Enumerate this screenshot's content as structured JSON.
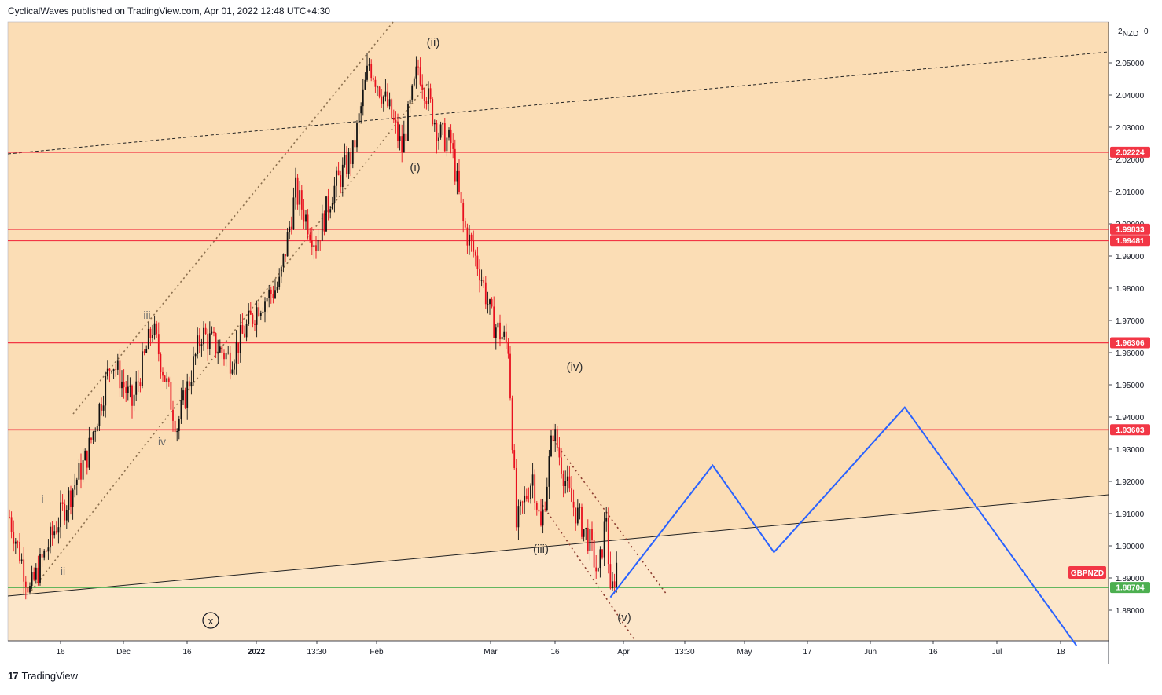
{
  "header": {
    "text": "CyclicalWaves published on TradingView.com, Apr 01, 2022 12:48 UTC+4:30"
  },
  "footer": {
    "logo_glyph": "17",
    "brand": "TradingView"
  },
  "chart_data": {
    "type": "candlestick",
    "symbol": "GBPNZD",
    "currency_label": "NZD",
    "axis_top_labels": [
      "2",
      "0"
    ],
    "ylim": [
      1.87,
      2.06
    ],
    "y_ticks": [
      "1.88000",
      "1.89000",
      "1.90000",
      "1.91000",
      "1.92000",
      "1.93000",
      "1.94000",
      "1.95000",
      "1.96000",
      "1.97000",
      "1.98000",
      "1.99000",
      "2.00000",
      "2.01000",
      "2.02000",
      "2.03000",
      "2.04000",
      "2.05000"
    ],
    "x_ticks": [
      "16",
      "Dec",
      "16",
      "2022",
      "13:30",
      "Feb",
      "Mar",
      "16",
      "Apr",
      "13:30",
      "May",
      "17",
      "Jun",
      "16",
      "Jul",
      "18"
    ],
    "price_lines": [
      {
        "value": 2.02224,
        "label": "2.02224",
        "color": "#f23645"
      },
      {
        "value": 1.99833,
        "label": "1.99833",
        "color": "#f23645"
      },
      {
        "value": 1.99481,
        "label": "1.99481",
        "color": "#f23645"
      },
      {
        "value": 1.96306,
        "label": "1.96306",
        "color": "#f23645"
      },
      {
        "value": 1.93603,
        "label": "1.93603",
        "color": "#f23645"
      },
      {
        "value": 1.88704,
        "label": "1.88704",
        "color": "#4caf50"
      }
    ],
    "symbol_badge": {
      "label": "GBPNZD",
      "color": "#f23645"
    },
    "wave_labels": [
      "i",
      "ii",
      "iii",
      "iv",
      "(i)",
      "(ii)",
      "(iii)",
      "(iv)",
      "(v)",
      "x"
    ],
    "projection_path": [
      {
        "date": "2022-04-01",
        "price": 1.884
      },
      {
        "date": "2022-04-26",
        "price": 1.925
      },
      {
        "date": "2022-05-11",
        "price": 1.898
      },
      {
        "date": "2022-06-12",
        "price": 1.943
      },
      {
        "date": "2022-07-24",
        "price": 1.869
      }
    ],
    "price_series_anchors": [
      {
        "date": "2021-11-05",
        "price": 1.909
      },
      {
        "date": "2021-11-10",
        "price": 1.886
      },
      {
        "date": "2021-11-16",
        "price": 1.905
      },
      {
        "date": "2021-11-24",
        "price": 1.928
      },
      {
        "date": "2021-11-30",
        "price": 1.958
      },
      {
        "date": "2021-12-05",
        "price": 1.944
      },
      {
        "date": "2021-12-10",
        "price": 1.968
      },
      {
        "date": "2021-12-16",
        "price": 1.937
      },
      {
        "date": "2021-12-22",
        "price": 1.966
      },
      {
        "date": "2021-12-29",
        "price": 1.958
      },
      {
        "date": "2022-01-05",
        "price": 1.975
      },
      {
        "date": "2022-01-10",
        "price": 1.981
      },
      {
        "date": "2022-01-14",
        "price": 2.01
      },
      {
        "date": "2022-01-19",
        "price": 1.994
      },
      {
        "date": "2022-01-23",
        "price": 2.01
      },
      {
        "date": "2022-01-28",
        "price": 2.022
      },
      {
        "date": "2022-02-01",
        "price": 2.05
      },
      {
        "date": "2022-02-06",
        "price": 2.035
      },
      {
        "date": "2022-02-09",
        "price": 2.023
      },
      {
        "date": "2022-02-13",
        "price": 2.049
      },
      {
        "date": "2022-02-18",
        "price": 2.028
      },
      {
        "date": "2022-02-21",
        "price": 2.025
      },
      {
        "date": "2022-02-24",
        "price": 2.0
      },
      {
        "date": "2022-02-28",
        "price": 1.986
      },
      {
        "date": "2022-03-03",
        "price": 1.97
      },
      {
        "date": "2022-03-07",
        "price": 1.962
      },
      {
        "date": "2022-03-09",
        "price": 1.906
      },
      {
        "date": "2022-03-13",
        "price": 1.922
      },
      {
        "date": "2022-03-15",
        "price": 1.905
      },
      {
        "date": "2022-03-18",
        "price": 1.936
      },
      {
        "date": "2022-03-22",
        "price": 1.915
      },
      {
        "date": "2022-03-27",
        "price": 1.901
      },
      {
        "date": "2022-03-29",
        "price": 1.89
      },
      {
        "date": "2022-03-31",
        "price": 1.91
      },
      {
        "date": "2022-04-01",
        "price": 1.883
      },
      {
        "date": "2022-04-03",
        "price": 1.898
      }
    ]
  }
}
